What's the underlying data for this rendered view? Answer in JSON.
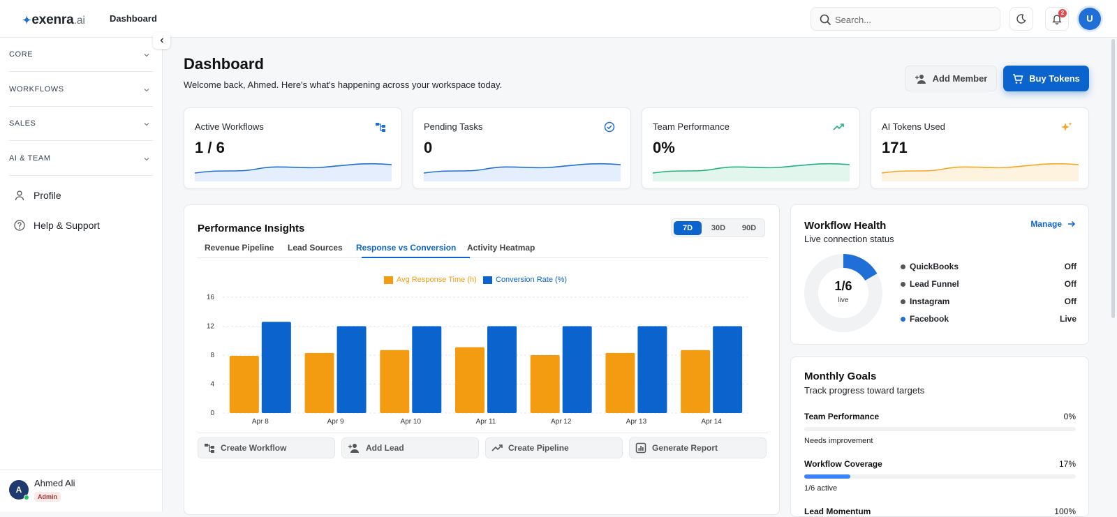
{
  "app": {
    "logo_name": "exenra",
    "logo_suffix": ".ai",
    "title": "Dashboard"
  },
  "search": {
    "placeholder": "Search..."
  },
  "notifications": {
    "count": "2"
  },
  "user_top": {
    "initial": "U"
  },
  "sidebar": {
    "sections": [
      {
        "label": "CORE"
      },
      {
        "label": "WORKFLOWS"
      },
      {
        "label": "SALES"
      },
      {
        "label": "AI & TEAM"
      }
    ],
    "items": [
      {
        "label": "Profile",
        "icon": "user-icon"
      },
      {
        "label": "Help & Support",
        "icon": "help-icon"
      }
    ],
    "user": {
      "initial": "A",
      "name": "Ahmed Ali",
      "role": "Admin"
    }
  },
  "header": {
    "title": "Dashboard",
    "subtitle": "Welcome back, Ahmed. Here's what's happening across your workspace today.",
    "add_member": "Add Member",
    "buy_tokens": "Buy Tokens"
  },
  "stats": [
    {
      "title": "Active Workflows",
      "value": "1 / 6",
      "icon": "workflow-icon",
      "color": "#1f6fd6"
    },
    {
      "title": "Pending Tasks",
      "value": "0",
      "icon": "check-circle-icon",
      "color": "#1f6fd6"
    },
    {
      "title": "Team Performance",
      "value": "0%",
      "icon": "trending-up-icon",
      "color": "#22b07d"
    },
    {
      "title": "AI Tokens Used",
      "value": "171",
      "icon": "sparkles-icon",
      "color": "#f5a623"
    }
  ],
  "insights": {
    "title": "Performance Insights",
    "ranges": [
      "7D",
      "30D",
      "90D"
    ],
    "selected_range": "7D",
    "tabs": [
      "Revenue Pipeline",
      "Lead Sources",
      "Response vs Conversion",
      "Activity Heatmap"
    ],
    "active_tab": "Response vs Conversion",
    "actions": [
      {
        "label": "Create Workflow",
        "icon": "workflow-icon"
      },
      {
        "label": "Add Lead",
        "icon": "add-user-icon"
      },
      {
        "label": "Create Pipeline",
        "icon": "trending-up-icon"
      },
      {
        "label": "Generate Report",
        "icon": "bar-chart-icon"
      }
    ]
  },
  "chart_data": {
    "type": "bar",
    "categories": [
      "Apr 8",
      "Apr 9",
      "Apr 10",
      "Apr 11",
      "Apr 12",
      "Apr 13",
      "Apr 14"
    ],
    "series": [
      {
        "name": "Avg Response Time (h)",
        "color": "#f39c12",
        "values": [
          7.9,
          8.3,
          8.7,
          9.1,
          8.0,
          8.3,
          8.7
        ]
      },
      {
        "name": "Conversion Rate (%)",
        "color": "#0b63ce",
        "values": [
          12.6,
          12.0,
          12.0,
          12.0,
          12.0,
          12.0,
          12.0
        ]
      }
    ],
    "yticks": [
      0,
      4,
      8,
      12,
      16
    ],
    "ylim": [
      0,
      16
    ],
    "grid": true,
    "legend": "top-center"
  },
  "workflow_health": {
    "title": "Workflow Health",
    "subtitle": "Live connection status",
    "manage": "Manage",
    "live_fraction": "1/6",
    "live_label": "live",
    "live_ratio": 0.1667,
    "connections": [
      {
        "name": "QuickBooks",
        "status": "Off",
        "color": "#555555"
      },
      {
        "name": "Lead Funnel",
        "status": "Off",
        "color": "#555555"
      },
      {
        "name": "Instagram",
        "status": "Off",
        "color": "#555555"
      },
      {
        "name": "Facebook",
        "status": "Live",
        "color": "#1f6fd6"
      }
    ]
  },
  "monthly_goals": {
    "title": "Monthly Goals",
    "subtitle": "Track progress toward targets",
    "goals": [
      {
        "label": "Team Performance",
        "percent": "0%",
        "progress": 0,
        "note": "Needs improvement"
      },
      {
        "label": "Workflow Coverage",
        "percent": "17%",
        "progress": 17,
        "note": "1/6 active"
      },
      {
        "label": "Lead Momentum",
        "percent": "100%",
        "progress": 100,
        "note": ""
      }
    ]
  }
}
